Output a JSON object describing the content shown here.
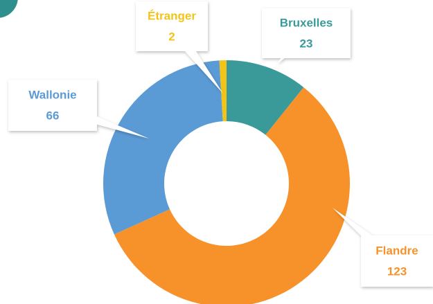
{
  "chart_data": {
    "type": "pie",
    "donut": true,
    "categories": [
      "Bruxelles",
      "Flandre",
      "Wallonie",
      "Étranger"
    ],
    "values": [
      23,
      123,
      66,
      2
    ],
    "colors": [
      "#3a9a99",
      "#f7922b",
      "#5b9bd5",
      "#f2c418"
    ]
  }
}
